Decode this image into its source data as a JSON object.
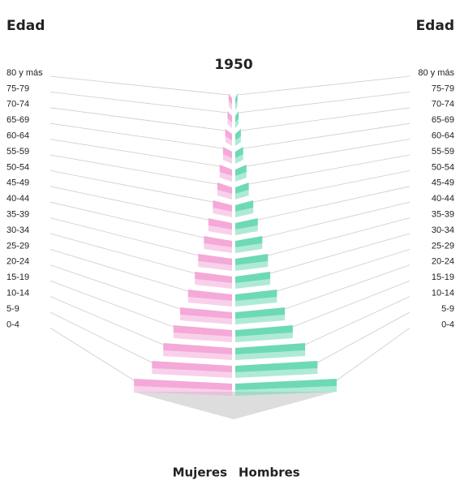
{
  "chart_data": {
    "type": "pyramid",
    "title": "1950",
    "axis_label_left": "Edad",
    "axis_label_right": "Edad",
    "categories": [
      "80 y más",
      "75-79",
      "70-74",
      "65-69",
      "60-64",
      "55-59",
      "50-54",
      "45-49",
      "40-44",
      "35-39",
      "30-34",
      "25-29",
      "20-24",
      "15-19",
      "10-14",
      "5-9",
      "0-4"
    ],
    "series": [
      {
        "name": "Mujeres",
        "color": "#f4a9d8",
        "values": [
          0.3,
          0.4,
          0.6,
          0.8,
          1.1,
          1.3,
          1.7,
          2.1,
          2.5,
          3.0,
          3.3,
          3.9,
          4.6,
          5.2,
          6.1,
          7.1,
          8.7
        ]
      },
      {
        "name": "Hombres",
        "color": "#6ed9b6",
        "values": [
          0.2,
          0.3,
          0.5,
          0.7,
          1.0,
          1.2,
          1.6,
          2.0,
          2.4,
          2.9,
          3.1,
          3.7,
          4.4,
          5.1,
          6.2,
          7.3,
          9.0
        ]
      }
    ]
  }
}
